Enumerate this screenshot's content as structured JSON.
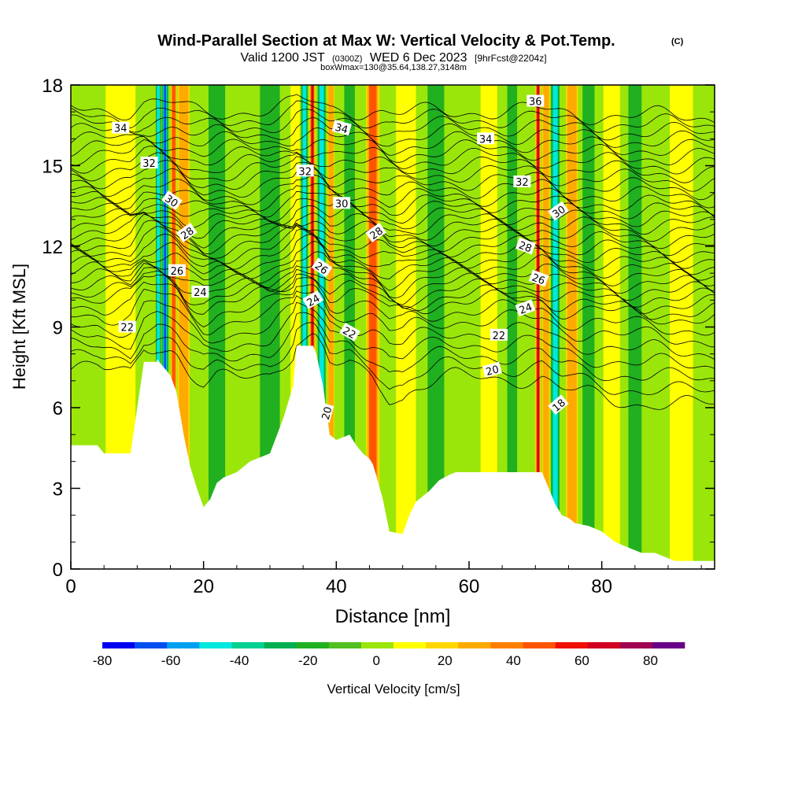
{
  "title": "Wind-Parallel Section at Max W: Vertical Velocity & Pot.Temp.",
  "title_mark": "(C)",
  "subtitle_pre": "Valid 1200 JST",
  "subtitle_z": "(0300Z)",
  "subtitle_date": "WED 6 Dec 2023",
  "subtitle_fcst": "[9hrFcst@2204z]",
  "subtitle2": "boxWmax=130@35.64,138.27,3148m",
  "chart_data": {
    "type": "heatmap",
    "xlabel": "Distance [nm]",
    "ylabel": "Height [Kft MSL]",
    "xlim": [
      0,
      97
    ],
    "ylim": [
      0,
      18
    ],
    "x_ticks": [
      "0",
      "20",
      "40",
      "60",
      "80"
    ],
    "y_ticks": [
      "0",
      "3",
      "6",
      "9",
      "12",
      "15",
      "18"
    ],
    "background_color": "#9be60a",
    "terrain": {
      "x": [
        0,
        4,
        5,
        9,
        10.9,
        11,
        12.9,
        13,
        15,
        15.9,
        17,
        18,
        19,
        20,
        21,
        22,
        23,
        25,
        27,
        30,
        32,
        32.5,
        33,
        33.5,
        34,
        36.5,
        37,
        38,
        39,
        40,
        41,
        42,
        43,
        44,
        45,
        45.5,
        46,
        47,
        48,
        50,
        51,
        52,
        54,
        55.5,
        57,
        58,
        60,
        62,
        64,
        66,
        68,
        69,
        70,
        71,
        72,
        73,
        74,
        75,
        76,
        78,
        80,
        81,
        82,
        84,
        86,
        88,
        90,
        91,
        92,
        94,
        96,
        97
      ],
      "height": [
        4.6,
        4.6,
        4.3,
        4.3,
        7.5,
        7.7,
        7.7,
        7.8,
        7.2,
        6.6,
        5.0,
        3.8,
        3.0,
        2.3,
        2.6,
        3.2,
        3.4,
        3.6,
        4.0,
        4.3,
        5.6,
        6.0,
        6.4,
        6.8,
        8.3,
        8.3,
        8.0,
        6.8,
        5.0,
        4.8,
        4.9,
        5.0,
        4.6,
        4.3,
        4.1,
        3.9,
        3.5,
        2.6,
        1.4,
        1.3,
        2.0,
        2.5,
        2.9,
        3.3,
        3.5,
        3.6,
        3.6,
        3.6,
        3.6,
        3.6,
        3.6,
        3.6,
        3.6,
        3.6,
        3.0,
        2.4,
        2.0,
        1.9,
        1.7,
        1.6,
        1.4,
        1.2,
        1.0,
        0.8,
        0.6,
        0.6,
        0.4,
        0.3,
        0.3,
        0.3,
        0.3,
        0.3
      ]
    },
    "velocity_bands": [
      {
        "x": 7.5,
        "w": 4.5,
        "v": 10
      },
      {
        "x": 13.2,
        "w": 0.8,
        "v": -45
      },
      {
        "x": 14.2,
        "w": 1.0,
        "v": -65
      },
      {
        "x": 15.5,
        "w": 0.9,
        "v": 60
      },
      {
        "x": 17.0,
        "w": 1.8,
        "v": 25
      },
      {
        "x": 22.0,
        "w": 2.5,
        "v": -20
      },
      {
        "x": 30.0,
        "w": 3.0,
        "v": -20
      },
      {
        "x": 33.8,
        "w": 1.4,
        "v": 10
      },
      {
        "x": 35.2,
        "w": 1.0,
        "v": -55
      },
      {
        "x": 36.4,
        "w": 0.9,
        "v": 75
      },
      {
        "x": 37.8,
        "w": 1.2,
        "v": -45
      },
      {
        "x": 39.2,
        "w": 1.0,
        "v": 25
      },
      {
        "x": 42.0,
        "w": 1.6,
        "v": -20
      },
      {
        "x": 45.5,
        "w": 2.0,
        "v": 45
      },
      {
        "x": 50.5,
        "w": 3.0,
        "v": 10
      },
      {
        "x": 55.0,
        "w": 2.5,
        "v": -20
      },
      {
        "x": 63.0,
        "w": 2.5,
        "v": 10
      },
      {
        "x": 66.5,
        "w": 1.5,
        "v": -20
      },
      {
        "x": 70.4,
        "w": 0.9,
        "v": 70
      },
      {
        "x": 71.6,
        "w": 1.1,
        "v": 35
      },
      {
        "x": 73.0,
        "w": 1.3,
        "v": -45
      },
      {
        "x": 75.5,
        "w": 1.8,
        "v": 35
      },
      {
        "x": 78.0,
        "w": 1.8,
        "v": -20
      },
      {
        "x": 81.5,
        "w": 2.5,
        "v": 10
      },
      {
        "x": 85.0,
        "w": 2.0,
        "v": -20
      },
      {
        "x": 92.0,
        "w": 3.5,
        "v": 10
      }
    ],
    "isentropes": {
      "base": [
        15.0,
        16.0,
        17.0,
        18.0,
        19.0,
        20.0,
        20.8,
        21.6,
        22.0,
        22.5,
        23.0,
        23.5,
        24.0,
        24.5,
        25.0,
        25.5,
        26.0,
        26.5,
        27.0,
        27.5,
        28.0,
        28.5,
        29.0,
        29.5,
        30.0,
        30.6,
        31.2,
        31.8,
        32.4,
        33.0,
        33.6,
        34.2,
        34.8,
        35.4,
        36.0,
        36.6
      ],
      "labels": [
        {
          "text": "34",
          "x": 7.5,
          "y": 16.4,
          "rot": 0
        },
        {
          "text": "32",
          "x": 11.8,
          "y": 15.1,
          "rot": 0
        },
        {
          "text": "30",
          "x": 15.2,
          "y": 13.7,
          "rot": 35
        },
        {
          "text": "28",
          "x": 17.5,
          "y": 12.5,
          "rot": -35
        },
        {
          "text": "26",
          "x": 16.0,
          "y": 11.1,
          "rot": 0
        },
        {
          "text": "24",
          "x": 19.5,
          "y": 10.3,
          "rot": 0
        },
        {
          "text": "22",
          "x": 8.5,
          "y": 9.0,
          "rot": 0
        },
        {
          "text": "32",
          "x": 35.3,
          "y": 14.8,
          "rot": 0
        },
        {
          "text": "34",
          "x": 40.8,
          "y": 16.4,
          "rot": 15
        },
        {
          "text": "30",
          "x": 40.8,
          "y": 13.6,
          "rot": 0
        },
        {
          "text": "26",
          "x": 37.8,
          "y": 11.2,
          "rot": 35
        },
        {
          "text": "24",
          "x": 36.5,
          "y": 10.0,
          "rot": -30
        },
        {
          "text": "22",
          "x": 42.0,
          "y": 8.8,
          "rot": 30
        },
        {
          "text": "28",
          "x": 46.0,
          "y": 12.5,
          "rot": -35
        },
        {
          "text": "20",
          "x": 38.5,
          "y": 5.8,
          "rot": -75
        },
        {
          "text": "36",
          "x": 70.0,
          "y": 17.4,
          "rot": 0
        },
        {
          "text": "34",
          "x": 62.5,
          "y": 16.0,
          "rot": 0
        },
        {
          "text": "32",
          "x": 68.0,
          "y": 14.4,
          "rot": 0
        },
        {
          "text": "30",
          "x": 73.5,
          "y": 13.3,
          "rot": -35
        },
        {
          "text": "28",
          "x": 68.5,
          "y": 12.0,
          "rot": 20
        },
        {
          "text": "26",
          "x": 70.5,
          "y": 10.8,
          "rot": 20
        },
        {
          "text": "24",
          "x": 68.5,
          "y": 9.7,
          "rot": -20
        },
        {
          "text": "22",
          "x": 64.5,
          "y": 8.7,
          "rot": 0
        },
        {
          "text": "20",
          "x": 63.5,
          "y": 7.4,
          "rot": -15
        },
        {
          "text": "18",
          "x": 73.5,
          "y": 6.1,
          "rot": -40
        }
      ]
    },
    "colorbar": {
      "label": "Vertical Velocity [cm/s]",
      "tick_labels": [
        "-80",
        "-60",
        "-40",
        "-20",
        "0",
        "20",
        "40",
        "60",
        "80"
      ],
      "range": [
        -80,
        90
      ],
      "colors": [
        "#0000f0",
        "#0050f0",
        "#00a0f0",
        "#00e8e0",
        "#00d090",
        "#00b050",
        "#20b020",
        "#50c020",
        "#9be60a",
        "#ffff00",
        "#ffd700",
        "#ffaa00",
        "#ff8000",
        "#ff5500",
        "#f01000",
        "#d00020",
        "#a00050",
        "#680088"
      ]
    }
  }
}
